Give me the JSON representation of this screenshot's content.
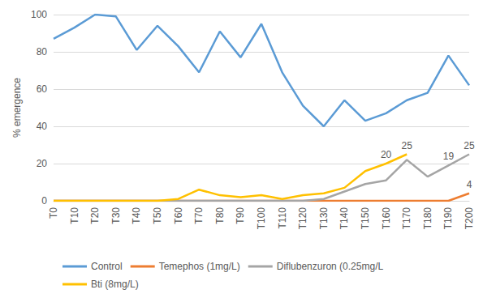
{
  "chart_data": {
    "type": "line",
    "y_label": "% emergence",
    "categories": [
      "T0",
      "T10",
      "T20",
      "T30",
      "T40",
      "T50",
      "T60",
      "T70",
      "T80",
      "T90",
      "T100",
      "T110",
      "T120",
      "T130",
      "T140",
      "T150",
      "T160",
      "T170",
      "T180",
      "T190",
      "T200"
    ],
    "series": [
      {
        "name": "Control",
        "color": "#5b9bd5",
        "values": [
          87,
          93,
          100,
          99,
          81,
          94,
          83,
          69,
          91,
          77,
          95,
          69,
          51,
          40,
          54,
          43,
          47,
          54,
          58,
          78,
          62
        ]
      },
      {
        "name": "Temephos (1mg/L)",
        "color": "#ed7d31",
        "values": [
          0,
          0,
          0,
          0,
          0,
          0,
          0,
          0,
          0,
          0,
          0,
          0,
          0,
          0,
          0,
          0,
          0,
          0,
          0,
          0,
          4
        ],
        "value_labels": [
          null,
          null,
          null,
          null,
          null,
          null,
          null,
          null,
          null,
          null,
          null,
          null,
          null,
          null,
          null,
          null,
          null,
          null,
          null,
          null,
          "4"
        ]
      },
      {
        "name": "Diflubenzuron (0.25mg/L",
        "color": "#a5a5a5",
        "values": [
          0,
          0,
          0,
          0,
          0,
          0,
          0,
          0,
          0,
          0,
          0,
          0,
          0,
          1,
          5,
          9,
          11,
          22,
          13,
          19,
          25
        ],
        "value_labels": [
          null,
          null,
          null,
          null,
          null,
          null,
          null,
          null,
          null,
          null,
          null,
          null,
          null,
          null,
          null,
          null,
          null,
          null,
          null,
          "19",
          "25"
        ]
      },
      {
        "name": "Bti (8mg/L)",
        "color": "#ffc000",
        "values": [
          0,
          0,
          0,
          0,
          0,
          0,
          1,
          6,
          3,
          2,
          3,
          1,
          3,
          4,
          7,
          16,
          20,
          25,
          null,
          null,
          null
        ],
        "value_labels": [
          null,
          null,
          null,
          null,
          null,
          null,
          null,
          null,
          null,
          null,
          null,
          null,
          null,
          null,
          null,
          null,
          "20",
          "25",
          null,
          null,
          null
        ]
      }
    ],
    "ylim": [
      0,
      100
    ],
    "yticks": [
      0,
      20,
      40,
      60,
      80,
      100
    ],
    "grid": true,
    "legend": "bottom"
  }
}
